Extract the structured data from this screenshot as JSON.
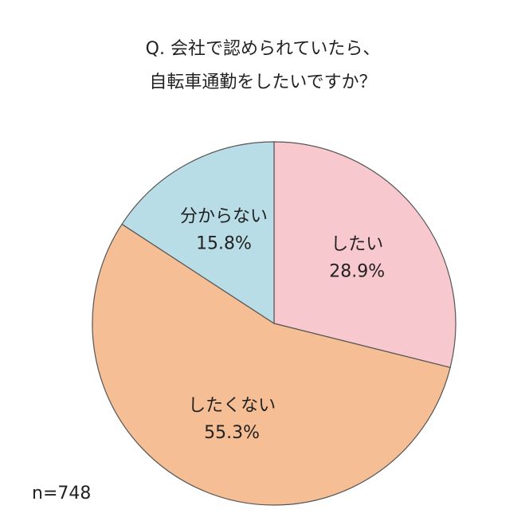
{
  "chart_data": {
    "type": "pie",
    "title": [
      "Q. 会社で認められていたら、",
      "自転車通勤をしたいですか？"
    ],
    "categories": [
      "したい",
      "したくない",
      "分からない"
    ],
    "values": [
      28.9,
      55.3,
      15.8
    ],
    "value_labels": [
      "28.9%",
      "55.3%",
      "15.8%"
    ],
    "colors": [
      "#f7c8cd",
      "#f5be95",
      "#b8dde7"
    ],
    "annotation": "n=748"
  }
}
